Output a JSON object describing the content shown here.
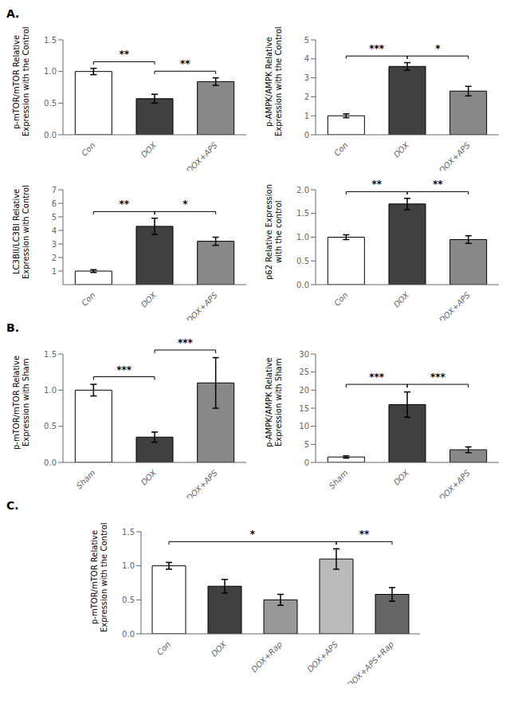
{
  "chart_data": [
    {
      "type": "bar",
      "title": "A.",
      "y_label": "p-mTOR/mTOR Relative\nExpression with the Control",
      "categories": [
        "Con",
        "DOX",
        "DOX+APS"
      ],
      "values": [
        1.0,
        0.57,
        0.84
      ],
      "errors": [
        0.05,
        0.07,
        0.06
      ],
      "colors": [
        "#FFFFFF",
        "#404040",
        "#888888"
      ],
      "ylim": [
        0,
        1.5
      ],
      "yticks": [
        {
          "value": 0,
          "label": "0.0"
        },
        0.5,
        {
          "value": 1,
          "label": "1.0"
        },
        1.5
      ],
      "grid": false,
      "annotations": [
        {
          "text": "**",
          "from": 0,
          "to": 1
        },
        {
          "text": "**",
          "from": 1,
          "to": 2
        }
      ]
    },
    {
      "type": "bar",
      "y_label": "p-AMPK/AMPK Relative\nExpression with the Control",
      "categories": [
        "Con",
        "DOX",
        "DOX+APS"
      ],
      "values": [
        1.0,
        3.6,
        2.3
      ],
      "errors": [
        0.1,
        0.2,
        0.25
      ],
      "colors": [
        "#FFFFFF",
        "#404040",
        "#888888"
      ],
      "ylim": [
        0,
        5
      ],
      "yticks": [
        0,
        1,
        2,
        3,
        4,
        5
      ],
      "grid": false,
      "annotations": [
        {
          "text": "***",
          "from": 0,
          "to": 1
        },
        {
          "text": "*",
          "from": 1,
          "to": 2
        }
      ]
    },
    {
      "type": "bar",
      "y_label": "LC3BII/LC3BI Relative\nExpression with Control",
      "categories": [
        "Con",
        "DOX",
        "DOX+APS"
      ],
      "values": [
        1.0,
        4.3,
        3.2
      ],
      "errors": [
        0.1,
        0.6,
        0.3
      ],
      "colors": [
        "#FFFFFF",
        "#404040",
        "#888888"
      ],
      "ylim": [
        0,
        7
      ],
      "yticks": [
        1,
        2,
        3,
        4,
        5,
        6,
        7
      ],
      "grid": false,
      "annotations": [
        {
          "text": "**",
          "from": 0,
          "to": 1
        },
        {
          "text": "*",
          "from": 1,
          "to": 2
        }
      ]
    },
    {
      "type": "bar",
      "y_label": "p62 Relative Expression\nwith the control",
      "categories": [
        "Con",
        "DOX",
        "DOX+APS"
      ],
      "values": [
        1.0,
        1.7,
        0.95
      ],
      "errors": [
        0.05,
        0.12,
        0.08
      ],
      "colors": [
        "#FFFFFF",
        "#404040",
        "#888888"
      ],
      "ylim": [
        0,
        2.0
      ],
      "yticks": [
        {
          "value": 0,
          "label": "0.0"
        },
        0.5,
        {
          "value": 1,
          "label": "1.0"
        },
        1.5,
        {
          "value": 2,
          "label": "2.0"
        }
      ],
      "grid": false,
      "annotations": [
        {
          "text": "**",
          "from": 0,
          "to": 1
        },
        {
          "text": "**",
          "from": 1,
          "to": 2
        }
      ]
    },
    {
      "type": "bar",
      "title": "B.",
      "y_label": "p-mTOR/mTOR Relative\nExpression with Sham",
      "categories": [
        "Sham",
        "DOX",
        "DOX+APS"
      ],
      "values": [
        1.0,
        0.35,
        1.1
      ],
      "errors": [
        0.08,
        0.07,
        0.35
      ],
      "colors": [
        "#FFFFFF",
        "#404040",
        "#888888"
      ],
      "ylim": [
        0,
        1.5
      ],
      "yticks": [
        {
          "value": 0,
          "label": "0.0"
        },
        0.5,
        {
          "value": 1,
          "label": "1.0"
        },
        1.5
      ],
      "grid": false,
      "annotations": [
        {
          "text": "***",
          "from": 0,
          "to": 1
        },
        {
          "text": "***",
          "from": 1,
          "to": 2
        }
      ]
    },
    {
      "type": "bar",
      "y_label": "p-AMPK/AMPK Relative\nExpression with Sham",
      "categories": [
        "Sham",
        "DOX",
        "DOX+APS"
      ],
      "values": [
        1.5,
        16.0,
        3.5
      ],
      "errors": [
        0.3,
        3.5,
        0.8
      ],
      "colors": [
        "#FFFFFF",
        "#404040",
        "#888888"
      ],
      "ylim": [
        0,
        30
      ],
      "yticks": [
        0,
        5,
        10,
        15,
        20,
        25,
        30
      ],
      "grid": false,
      "annotations": [
        {
          "text": "***",
          "from": 0,
          "to": 1
        },
        {
          "text": "***",
          "from": 1,
          "to": 2
        }
      ]
    },
    {
      "type": "bar",
      "title": "C.",
      "y_label": "p-mTOR/mTOR Relative\nExpression with the Control",
      "categories": [
        "Con",
        "DOX",
        "DOX+Rap",
        "DOX+APS",
        "DOX+APS+Rap"
      ],
      "values": [
        1.0,
        0.7,
        0.5,
        1.1,
        0.58
      ],
      "errors": [
        0.05,
        0.1,
        0.08,
        0.15,
        0.1
      ],
      "colors": [
        "#FFFFFF",
        "#404040",
        "#999999",
        "#bbbbbb",
        "#666666"
      ],
      "ylim": [
        0,
        1.5
      ],
      "yticks": [
        {
          "value": 0,
          "label": "0.0"
        },
        0.5,
        {
          "value": 1,
          "label": "1.0"
        },
        1.5
      ],
      "grid": false,
      "annotations": [
        {
          "text": "*",
          "from": 0,
          "to": 3
        },
        {
          "text": "**",
          "from": 3,
          "to": 4
        }
      ]
    }
  ]
}
